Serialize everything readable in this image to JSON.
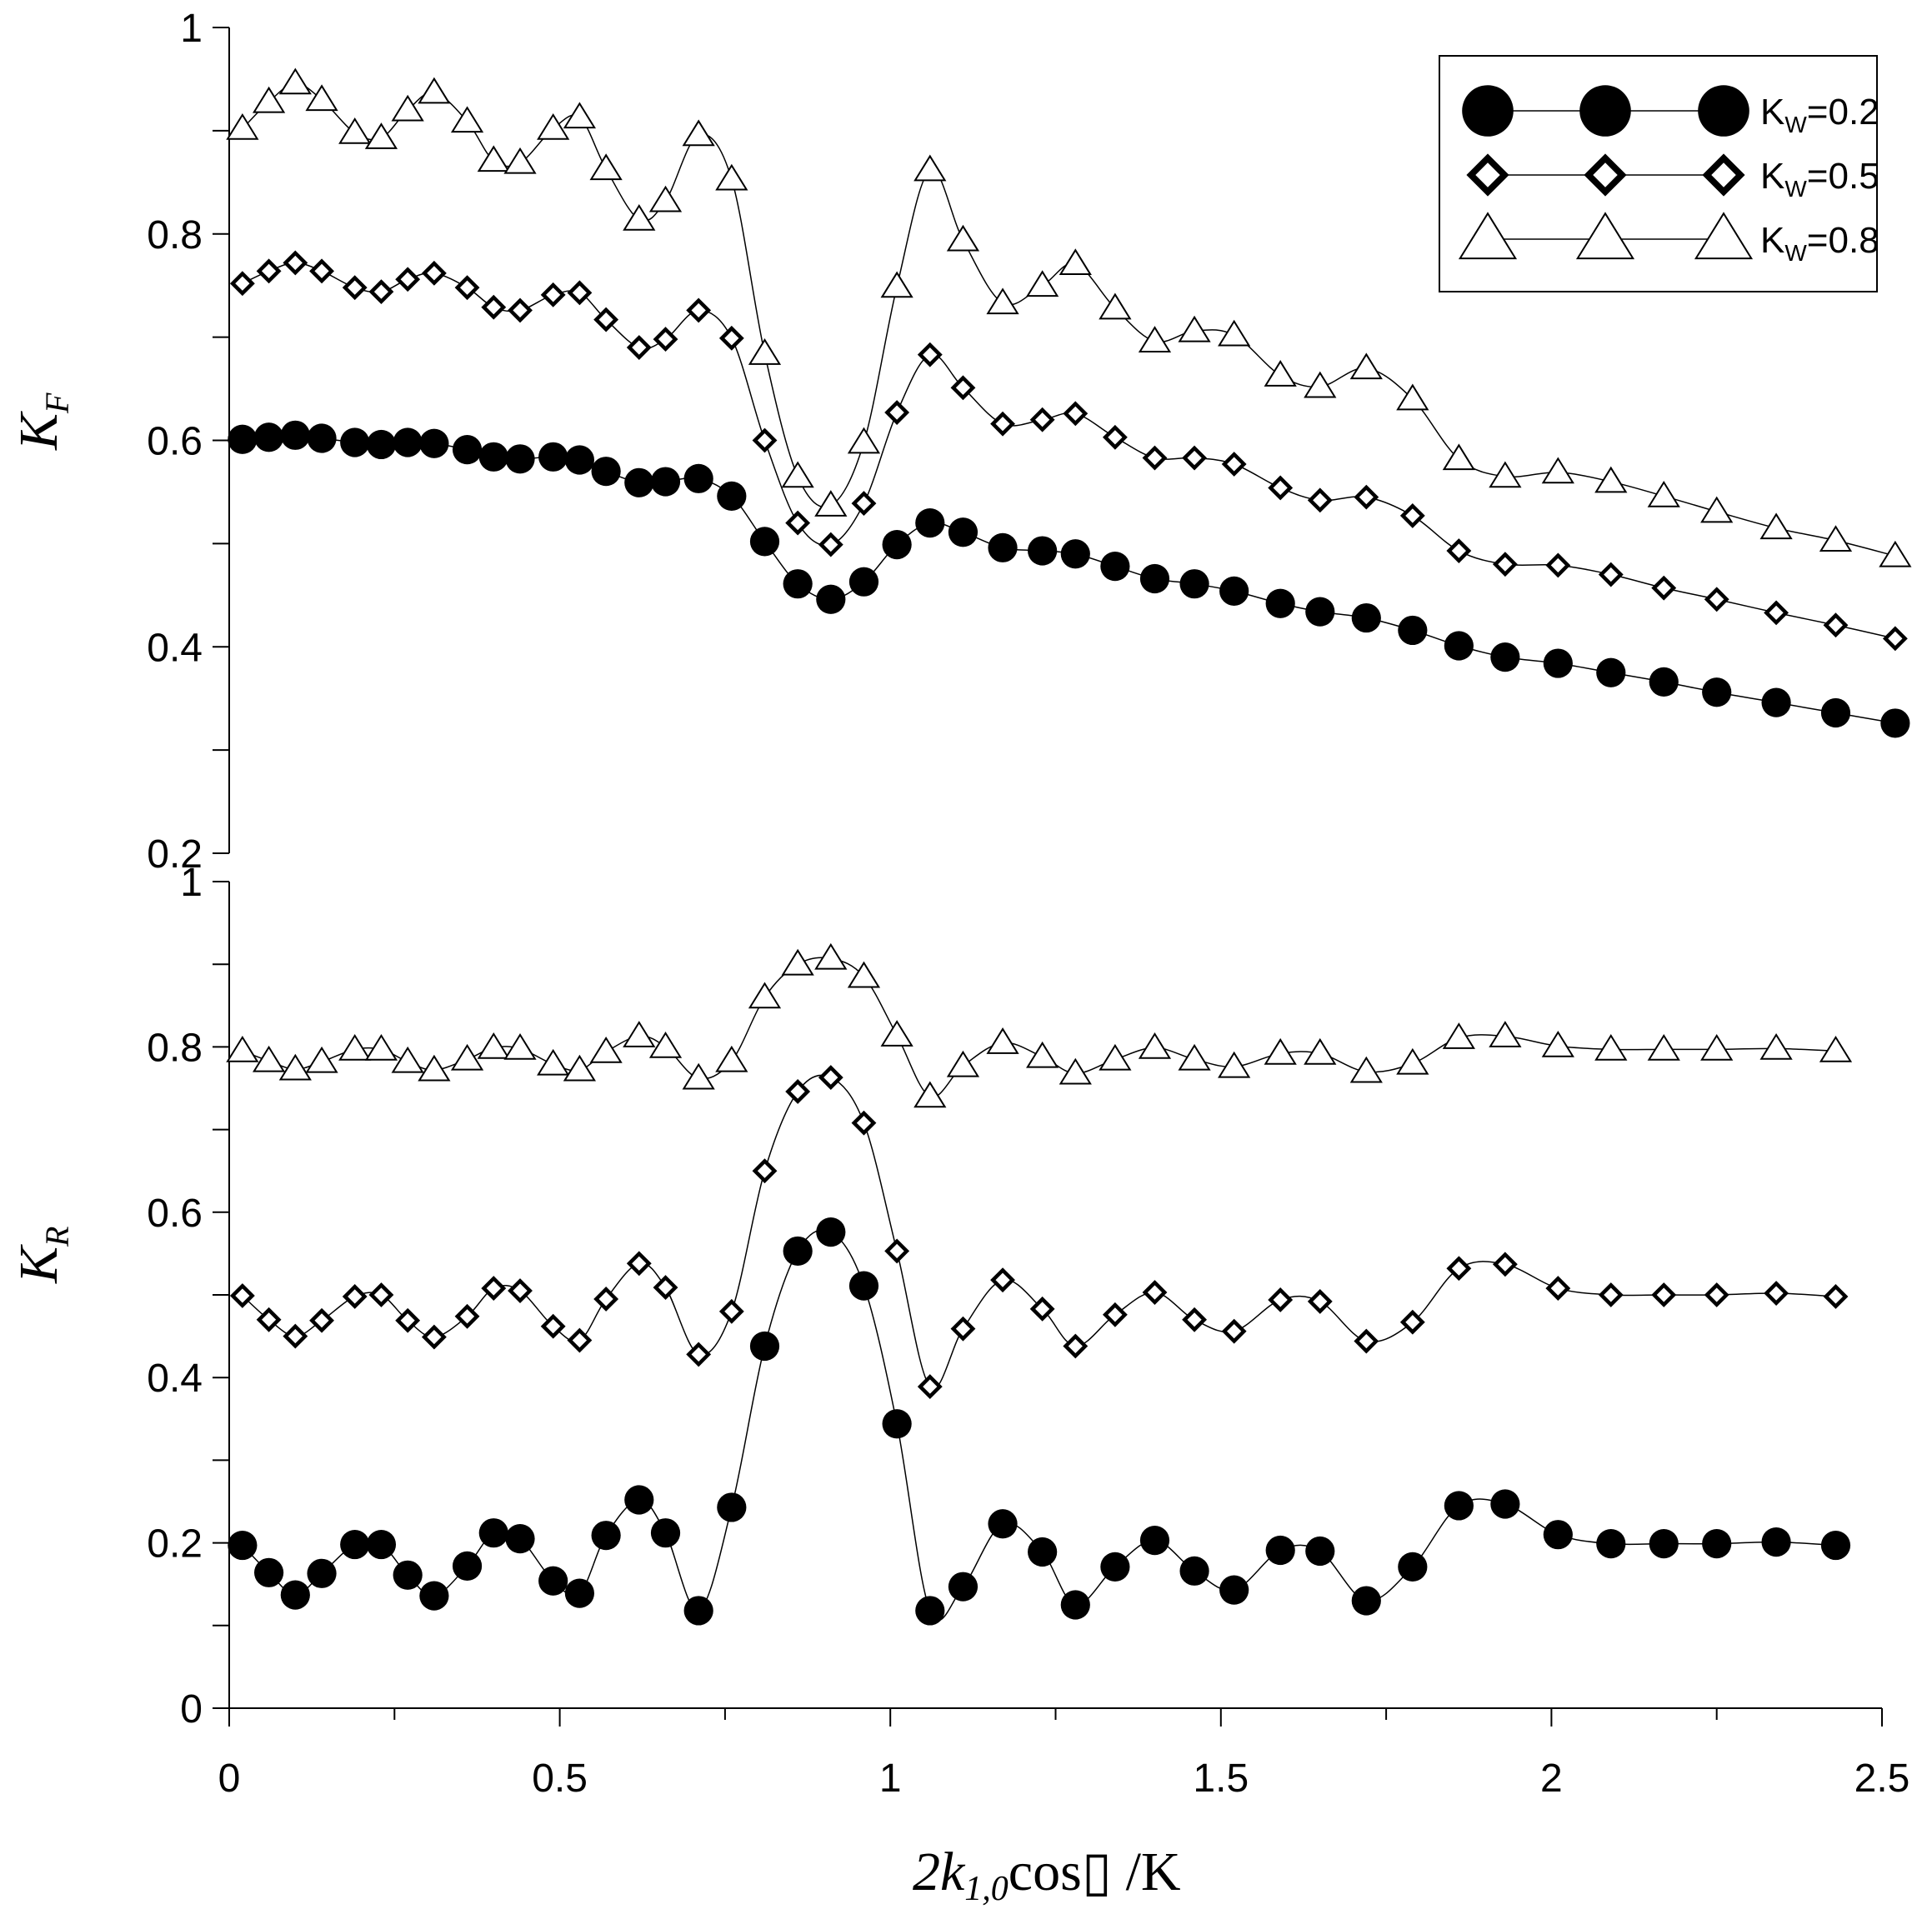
{
  "chart_data": [
    {
      "type": "line",
      "panel": "top",
      "ylabel": "K",
      "ylabel_sub": "F",
      "ylim": [
        0.2,
        1.0
      ],
      "yticks": [
        0.2,
        0.4,
        0.6,
        0.8,
        1.0
      ],
      "ytick_labels": [
        "0.2",
        "0.4",
        "0.6",
        "0.8",
        "1"
      ],
      "xlim": [
        0,
        2.5
      ],
      "x": [
        0.02,
        0.06,
        0.1,
        0.14,
        0.19,
        0.23,
        0.27,
        0.31,
        0.36,
        0.4,
        0.44,
        0.49,
        0.53,
        0.57,
        0.62,
        0.66,
        0.71,
        0.76,
        0.81,
        0.86,
        0.91,
        0.96,
        1.01,
        1.06,
        1.11,
        1.17,
        1.23,
        1.28,
        1.34,
        1.4,
        1.46,
        1.52,
        1.59,
        1.65,
        1.72,
        1.79,
        1.86,
        1.93,
        2.01,
        2.09,
        2.17,
        2.25,
        2.34,
        2.43,
        2.52
      ],
      "series": [
        {
          "name": "KW=0.2",
          "marker": "circle",
          "values": [
            0.601,
            0.603,
            0.605,
            0.602,
            0.598,
            0.596,
            0.598,
            0.597,
            0.591,
            0.584,
            0.582,
            0.584,
            0.581,
            0.57,
            0.559,
            0.56,
            0.563,
            0.546,
            0.502,
            0.461,
            0.446,
            0.463,
            0.499,
            0.52,
            0.511,
            0.496,
            0.493,
            0.49,
            0.478,
            0.466,
            0.461,
            0.454,
            0.442,
            0.434,
            0.428,
            0.416,
            0.401,
            0.39,
            0.384,
            0.375,
            0.366,
            0.356,
            0.346,
            0.336,
            0.326
          ]
        },
        {
          "name": "KW=0.5",
          "marker": "diamond",
          "values": [
            0.752,
            0.764,
            0.772,
            0.764,
            0.748,
            0.744,
            0.756,
            0.762,
            0.748,
            0.729,
            0.726,
            0.741,
            0.743,
            0.717,
            0.69,
            0.698,
            0.726,
            0.699,
            0.6,
            0.52,
            0.499,
            0.539,
            0.627,
            0.683,
            0.651,
            0.616,
            0.62,
            0.626,
            0.603,
            0.583,
            0.583,
            0.577,
            0.554,
            0.542,
            0.545,
            0.527,
            0.493,
            0.48,
            0.479,
            0.47,
            0.457,
            0.446,
            0.433,
            0.421,
            0.408
          ]
        },
        {
          "name": "KW=0.8",
          "marker": "triangle",
          "values": [
            0.902,
            0.928,
            0.946,
            0.93,
            0.898,
            0.893,
            0.92,
            0.937,
            0.909,
            0.871,
            0.869,
            0.902,
            0.913,
            0.863,
            0.814,
            0.832,
            0.896,
            0.853,
            0.684,
            0.565,
            0.537,
            0.598,
            0.749,
            0.862,
            0.794,
            0.733,
            0.75,
            0.771,
            0.728,
            0.696,
            0.706,
            0.702,
            0.663,
            0.652,
            0.67,
            0.64,
            0.582,
            0.565,
            0.569,
            0.56,
            0.546,
            0.531,
            0.515,
            0.503,
            0.488
          ]
        }
      ]
    },
    {
      "type": "line",
      "panel": "bottom",
      "ylabel": "K",
      "ylabel_sub": "R",
      "ylim": [
        0.0,
        1.0
      ],
      "yticks": [
        0.0,
        0.2,
        0.4,
        0.6,
        0.8,
        1.0
      ],
      "ytick_labels": [
        "0",
        "0.2",
        "0.4",
        "0.6",
        "0.8",
        "1"
      ],
      "xlim": [
        0,
        2.5
      ],
      "xticks": [
        0,
        0.5,
        1,
        1.5,
        2,
        2.5
      ],
      "xtick_labels": [
        "0",
        "0.5",
        "1",
        "1.5",
        "2",
        "2.5"
      ],
      "xlabel": "2k",
      "xlabel_sub": "1,0",
      "xlabel_tail": "cos▯ /K",
      "x": [
        0.02,
        0.06,
        0.1,
        0.14,
        0.19,
        0.23,
        0.27,
        0.31,
        0.36,
        0.4,
        0.44,
        0.49,
        0.53,
        0.57,
        0.62,
        0.66,
        0.71,
        0.76,
        0.81,
        0.86,
        0.91,
        0.96,
        1.01,
        1.06,
        1.11,
        1.17,
        1.23,
        1.28,
        1.34,
        1.4,
        1.46,
        1.52,
        1.59,
        1.65,
        1.72,
        1.79,
        1.86,
        1.93,
        2.01,
        2.09,
        2.17,
        2.25,
        2.34,
        2.43
      ],
      "series": [
        {
          "name": "KW=0.2",
          "marker": "circle",
          "values": [
            0.197,
            0.164,
            0.137,
            0.163,
            0.198,
            0.198,
            0.161,
            0.136,
            0.172,
            0.212,
            0.205,
            0.154,
            0.139,
            0.209,
            0.252,
            0.212,
            0.118,
            0.243,
            0.438,
            0.553,
            0.576,
            0.511,
            0.344,
            0.118,
            0.147,
            0.223,
            0.189,
            0.125,
            0.171,
            0.203,
            0.166,
            0.143,
            0.191,
            0.19,
            0.13,
            0.171,
            0.245,
            0.247,
            0.21,
            0.199,
            0.199,
            0.199,
            0.201,
            0.197
          ]
        },
        {
          "name": "KW=0.5",
          "marker": "diamond",
          "values": [
            0.499,
            0.47,
            0.45,
            0.469,
            0.498,
            0.5,
            0.469,
            0.449,
            0.474,
            0.508,
            0.505,
            0.462,
            0.445,
            0.495,
            0.538,
            0.509,
            0.428,
            0.48,
            0.65,
            0.746,
            0.763,
            0.708,
            0.553,
            0.389,
            0.459,
            0.518,
            0.483,
            0.438,
            0.476,
            0.503,
            0.47,
            0.456,
            0.494,
            0.492,
            0.444,
            0.467,
            0.532,
            0.537,
            0.508,
            0.5,
            0.5,
            0.5,
            0.502,
            0.498
          ]
        },
        {
          "name": "KW=0.8",
          "marker": "triangle",
          "values": [
            0.795,
            0.783,
            0.773,
            0.782,
            0.797,
            0.797,
            0.782,
            0.772,
            0.785,
            0.799,
            0.798,
            0.779,
            0.772,
            0.794,
            0.813,
            0.8,
            0.762,
            0.783,
            0.86,
            0.9,
            0.907,
            0.885,
            0.814,
            0.74,
            0.777,
            0.805,
            0.788,
            0.768,
            0.785,
            0.799,
            0.785,
            0.776,
            0.792,
            0.792,
            0.77,
            0.78,
            0.811,
            0.813,
            0.801,
            0.797,
            0.797,
            0.797,
            0.798,
            0.795
          ]
        }
      ]
    }
  ],
  "legend": {
    "placement": "top-right",
    "entries": [
      {
        "marker": "circle",
        "label": "K",
        "sub": "W",
        "tail": "=0.2"
      },
      {
        "marker": "diamond",
        "label": "K",
        "sub": "W",
        "tail": "=0.5"
      },
      {
        "marker": "triangle",
        "label": "K",
        "sub": "W",
        "tail": "=0.8"
      }
    ]
  }
}
